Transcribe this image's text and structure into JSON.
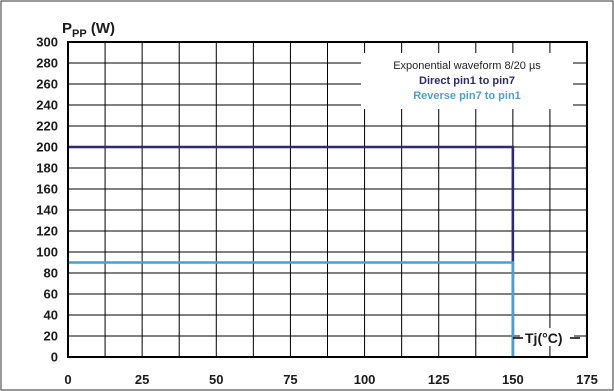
{
  "chart_data": {
    "type": "line",
    "ylabel_main": "P",
    "ylabel_sub": "PP",
    "ylabel_unit": " (W)",
    "xlabel": "Tj(°C)",
    "xlim": [
      0,
      175
    ],
    "ylim": [
      0,
      300
    ],
    "x_ticks": [
      0,
      25,
      50,
      75,
      100,
      125,
      150,
      175
    ],
    "y_ticks": [
      0,
      20,
      40,
      60,
      80,
      100,
      120,
      140,
      160,
      180,
      200,
      220,
      240,
      260,
      280,
      300
    ],
    "x_grid_step": 12.5,
    "grid": true,
    "legend_title": "Exponential waveform  8/20 µs",
    "legend_position": "top-right",
    "series": [
      {
        "name": "Direct pin1 to pin7",
        "color": "#2e2a6b",
        "points": [
          [
            0,
            200
          ],
          [
            150,
            200
          ],
          [
            150,
            0
          ]
        ]
      },
      {
        "name": "Reverse pin7 to pin1",
        "color": "#4f9fc8",
        "points": [
          [
            0,
            90
          ],
          [
            150,
            90
          ],
          [
            150,
            0
          ]
        ]
      }
    ]
  }
}
